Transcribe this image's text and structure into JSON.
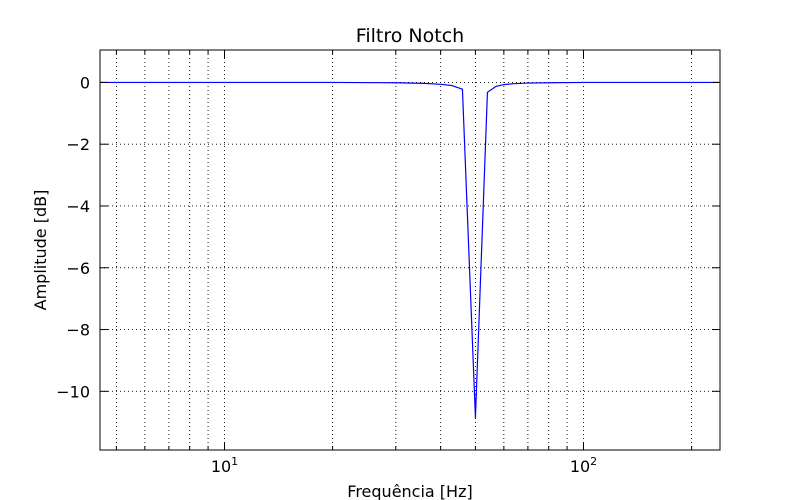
{
  "chart_data": {
    "type": "line",
    "title": "Filtro Notch",
    "xlabel": "Frequência [Hz]",
    "ylabel": "Amplitude [dB]",
    "xscale": "log",
    "xlim": [
      4.5,
      240
    ],
    "ylim": [
      -11.9,
      1.05
    ],
    "grid": true,
    "xticks": [
      {
        "value": 10,
        "base": "10",
        "exp": "1"
      },
      {
        "value": 100,
        "base": "10",
        "exp": "2"
      }
    ],
    "yticks": [
      {
        "value": 0,
        "label": "0"
      },
      {
        "value": -2,
        "label": "−2"
      },
      {
        "value": -4,
        "label": "−4"
      },
      {
        "value": -6,
        "label": "−6"
      },
      {
        "value": -8,
        "label": "−8"
      },
      {
        "value": -10,
        "label": "−10"
      }
    ],
    "series": [
      {
        "color": "#0000ff",
        "x": [
          4.5,
          10,
          20,
          30,
          36,
          40,
          43,
          46,
          50,
          54,
          57,
          60,
          64,
          70,
          80,
          100,
          150,
          240
        ],
        "y": [
          0,
          0,
          0,
          -0.01,
          -0.03,
          -0.06,
          -0.1,
          -0.22,
          -10.85,
          -0.32,
          -0.13,
          -0.07,
          -0.04,
          -0.02,
          -0.01,
          0,
          0,
          0
        ]
      }
    ]
  }
}
